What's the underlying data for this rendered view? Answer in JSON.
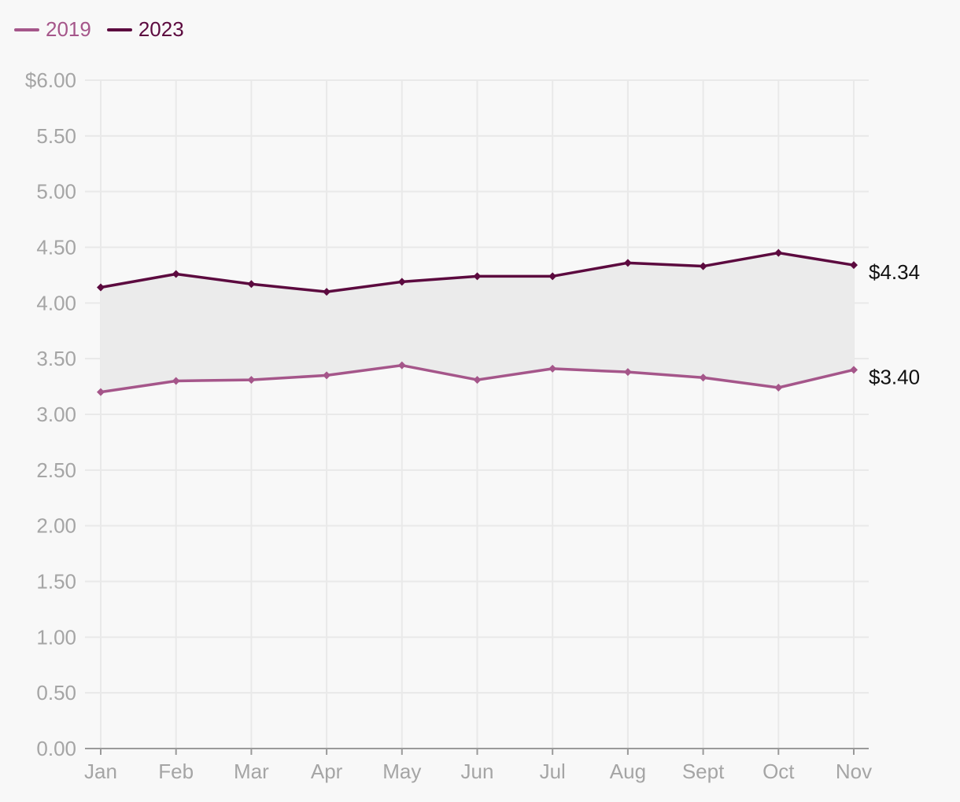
{
  "chart_data": {
    "type": "line",
    "title": "",
    "xlabel": "",
    "ylabel": "",
    "categories": [
      "Jan",
      "Feb",
      "Mar",
      "Apr",
      "May",
      "Jun",
      "Jul",
      "Aug",
      "Sept",
      "Oct",
      "Nov"
    ],
    "ylim": [
      0,
      6
    ],
    "y_ticks": [
      0,
      0.5,
      1,
      1.5,
      2,
      2.5,
      3,
      3.5,
      4,
      4.5,
      5,
      5.5,
      6
    ],
    "y_tick_labels": [
      "0.00",
      "0.50",
      "1.00",
      "1.50",
      "2.00",
      "2.50",
      "3.00",
      "3.50",
      "4.00",
      "4.50",
      "5.00",
      "5.50",
      "$6.00"
    ],
    "grid": true,
    "legend_position": "top-left",
    "shaded_band_between_series": true,
    "series": [
      {
        "name": "2019",
        "color": "#a5568a",
        "values": [
          3.2,
          3.3,
          3.31,
          3.35,
          3.44,
          3.31,
          3.41,
          3.38,
          3.33,
          3.24,
          3.4
        ],
        "end_label": "$3.40"
      },
      {
        "name": "2023",
        "color": "#5c0a3f",
        "values": [
          4.14,
          4.26,
          4.17,
          4.1,
          4.19,
          4.24,
          4.24,
          4.36,
          4.33,
          4.45,
          4.34
        ],
        "end_label": "$4.34"
      }
    ]
  },
  "colors": {
    "background": "#f8f8f8",
    "grid": "#e9e9e9",
    "axis": "#9a9a9a",
    "tick_text": "#a5a5a5",
    "band_fill": "#ebebeb",
    "end_label_text": "#111111"
  }
}
